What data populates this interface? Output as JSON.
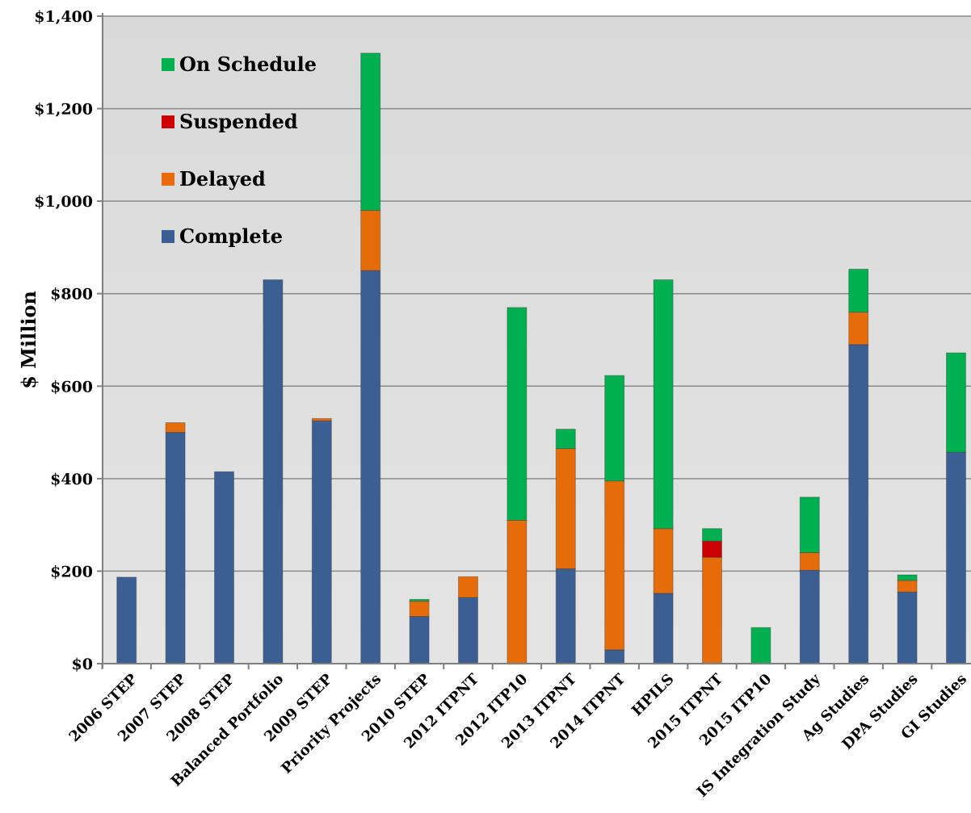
{
  "chart_data": {
    "type": "bar",
    "stacked": true,
    "title": "",
    "xlabel": "",
    "ylabel": "$ Million",
    "ylim": [
      0,
      1400
    ],
    "yticks": [
      0,
      200,
      400,
      600,
      800,
      1000,
      1200,
      1400
    ],
    "ytick_labels": [
      "$0",
      "$200",
      "$400",
      "$600",
      "$800",
      "$1,000",
      "$1,200",
      "$1,400"
    ],
    "grid": true,
    "legend_position": "top-left",
    "categories": [
      "2006 STEP",
      "2007 STEP",
      "2008 STEP",
      "Balanced Portfolio",
      "2009 STEP",
      "Priority Projects",
      "2010 STEP",
      "2012 ITPNT",
      "2012 ITP10",
      "2013 ITPNT",
      "2014 ITPNT",
      "HPILS",
      "2015 ITPNT",
      "2015 ITP10",
      "IS Integration Study",
      "Ag Studies",
      "DPA Studies",
      "GI Studies"
    ],
    "series": [
      {
        "name": "Complete",
        "color": "#3b5f93",
        "values": [
          187,
          500,
          415,
          830,
          525,
          850,
          102,
          143,
          0,
          205,
          30,
          152,
          0,
          0,
          202,
          690,
          155,
          457
        ]
      },
      {
        "name": "Delayed",
        "color": "#e66c0a",
        "values": [
          0,
          21,
          0,
          0,
          5,
          130,
          33,
          45,
          310,
          260,
          365,
          140,
          230,
          0,
          38,
          70,
          25,
          0
        ]
      },
      {
        "name": "Suspended",
        "color": "#cc0000",
        "values": [
          0,
          0,
          0,
          0,
          0,
          0,
          0,
          0,
          0,
          0,
          0,
          0,
          35,
          0,
          0,
          0,
          0,
          0
        ]
      },
      {
        "name": "On Schedule",
        "color": "#00b050",
        "values": [
          0,
          0,
          0,
          0,
          0,
          340,
          4,
          0,
          460,
          42,
          228,
          538,
          27,
          78,
          120,
          93,
          12,
          215
        ]
      }
    ],
    "legend_order": [
      "On Schedule",
      "Suspended",
      "Delayed",
      "Complete"
    ]
  }
}
